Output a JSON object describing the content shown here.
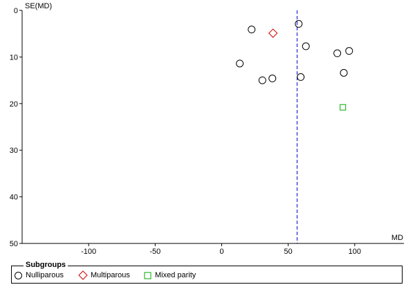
{
  "chart_data": {
    "type": "scatter",
    "title": "",
    "xlabel": "MD",
    "ylabel": "SE(MD)",
    "xlim": [
      -150,
      137
    ],
    "ylim": [
      0,
      50
    ],
    "y_inverted": true,
    "x_ticks": [
      -100,
      -50,
      0,
      50,
      100
    ],
    "y_ticks": [
      0,
      10,
      20,
      30,
      40,
      50
    ],
    "reference_line": {
      "x": 56.7,
      "style": "dashed",
      "color": "#0000CC"
    },
    "series": [
      {
        "name": "Nulliparous",
        "marker": "circle",
        "color": "#000000",
        "points": [
          {
            "x": 22.5,
            "y": 4.1
          },
          {
            "x": 57.9,
            "y": 2.9
          },
          {
            "x": 63.3,
            "y": 7.7
          },
          {
            "x": 86.9,
            "y": 9.2
          },
          {
            "x": 95.8,
            "y": 8.7
          },
          {
            "x": 13.6,
            "y": 11.4
          },
          {
            "x": 91.8,
            "y": 13.4
          },
          {
            "x": 30.6,
            "y": 15.0
          },
          {
            "x": 38.1,
            "y": 14.6
          },
          {
            "x": 59.4,
            "y": 14.3
          }
        ]
      },
      {
        "name": "Multiparous",
        "marker": "diamond",
        "color": "#CC0000",
        "points": [
          {
            "x": 38.6,
            "y": 4.9
          }
        ]
      },
      {
        "name": "Mixed parity",
        "marker": "square",
        "color": "#00AA00",
        "points": [
          {
            "x": 91.1,
            "y": 20.8
          }
        ]
      }
    ],
    "legend": {
      "title": "Subgroups",
      "placement": "bottom"
    }
  }
}
